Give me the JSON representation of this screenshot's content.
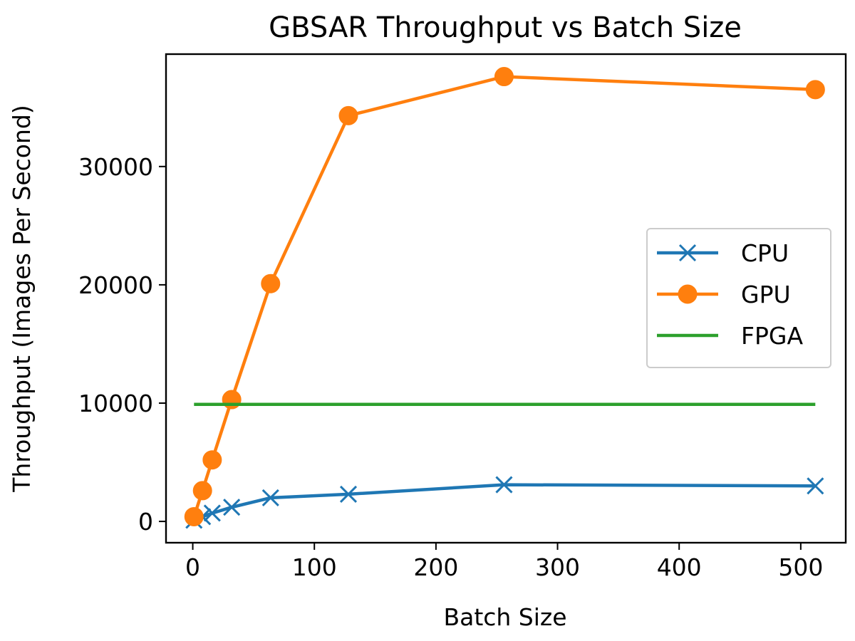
{
  "chart_data": {
    "type": "line",
    "title": "GBSAR Throughput vs Batch Size",
    "xlabel": "Batch Size",
    "ylabel": "Throughput (Images Per Second)",
    "xlim": [
      -22,
      537
    ],
    "ylim": [
      -1800,
      39500
    ],
    "xticks": [
      0,
      100,
      200,
      300,
      400,
      500
    ],
    "yticks": [
      0,
      10000,
      20000,
      30000
    ],
    "grid": false,
    "legend_position": "center-right",
    "series": [
      {
        "name": "CPU",
        "color": "#1f77b4",
        "marker": "x",
        "x": [
          1,
          8,
          16,
          32,
          64,
          128,
          256,
          512
        ],
        "y": [
          100,
          400,
          700,
          1200,
          2000,
          2300,
          3100,
          3000
        ]
      },
      {
        "name": "GPU",
        "color": "#ff7f0e",
        "marker": "circle",
        "x": [
          1,
          8,
          16,
          32,
          64,
          128,
          256,
          512
        ],
        "y": [
          400,
          2600,
          5200,
          10300,
          20100,
          34300,
          37600,
          36500
        ]
      },
      {
        "name": "FPGA",
        "color": "#2ca02c",
        "marker": "none",
        "x": [
          1,
          512
        ],
        "y": [
          9900,
          9900
        ]
      }
    ]
  }
}
